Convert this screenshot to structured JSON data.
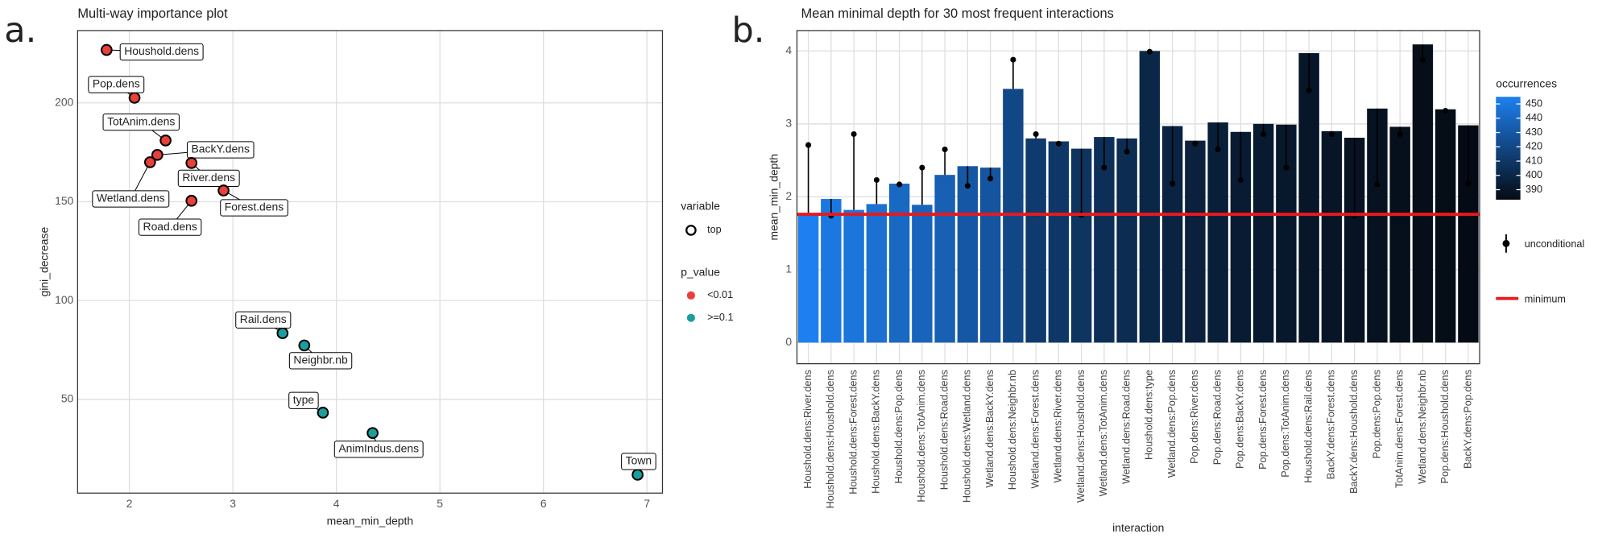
{
  "chart_data": [
    {
      "type": "scatter",
      "panel_label": "a.",
      "title": "Multi-way importance plot",
      "xlabel": "mean_min_depth",
      "ylabel": "gini_decrease",
      "labels": [
        "Houshold.dens",
        "Pop.dens",
        "TotAnim.dens",
        "BackY.dens",
        "Wetland.dens",
        "River.dens",
        "Forest.dens",
        "Road.dens",
        "Rail.dens",
        "Neighbr.nb",
        "type",
        "AnimIndus.dens",
        "Town"
      ],
      "x": [
        1.78,
        2.05,
        2.35,
        2.27,
        2.2,
        2.6,
        2.91,
        2.6,
        3.48,
        3.69,
        3.87,
        4.35,
        6.91
      ],
      "values": [
        226.8,
        202.6,
        181,
        173.7,
        170,
        169.6,
        155.7,
        150.5,
        83.5,
        77.3,
        43.3,
        33,
        11.9
      ],
      "p_value": [
        "<0.01",
        "<0.01",
        "<0.01",
        "<0.01",
        "<0.01",
        "<0.01",
        "<0.01",
        "<0.01",
        ">=0.1",
        ">=0.1",
        ">=0.1",
        ">=0.1",
        ">=0.1"
      ],
      "xlim": [
        1.5,
        7.15
      ],
      "ylim": [
        2.6,
        236.6
      ],
      "xticks": [
        2,
        3,
        4,
        5,
        6,
        7
      ],
      "yticks": [
        50,
        100,
        150,
        200
      ],
      "grid": true,
      "legend": {
        "variable_title": "variable",
        "variable_entry": "top",
        "p_value_title": "p_value",
        "p_value_levels": [
          {
            "name": "<0.01",
            "color": "#e8403a"
          },
          {
            "name": ">=0.1",
            "color": "#1b9e9e"
          }
        ]
      }
    },
    {
      "type": "bar",
      "panel_label": "b.",
      "title": "Mean minimal depth for 30 most frequent interactions",
      "xlabel": "interaction",
      "ylabel": "mean_min_depth",
      "categories": [
        "Houshold.dens:River.dens",
        "Houshold.dens:Houshold.dens",
        "Houshold.dens:Forest.dens",
        "Houshold.dens:BackY.dens",
        "Houshold.dens:Pop.dens",
        "Houshold.dens:TotAnim.dens",
        "Houshold.dens:Road.dens",
        "Houshold.dens:Wetland.dens",
        "Wetland.dens:BackY.dens",
        "Houshold.dens:Neighbr.nb",
        "Wetland.dens:Forest.dens",
        "Wetland.dens:River.dens",
        "Wetland.dens:Houshold.dens",
        "Wetland.dens:TotAnim.dens",
        "Wetland.dens:Road.dens",
        "Houshold.dens:type",
        "Wetland.dens:Pop.dens",
        "Pop.dens:River.dens",
        "Pop.dens:Road.dens",
        "Pop.dens:BackY.dens",
        "Pop.dens:Forest.dens",
        "Pop.dens:TotAnim.dens",
        "Houshold.dens:Rail.dens",
        "BackY.dens:Forest.dens",
        "BackY.dens:Houshold.dens",
        "Pop.dens:Pop.dens",
        "TotAnim.dens:Forest.dens",
        "Wetland.dens:Neighbr.nb",
        "Pop.dens:Houshold.dens",
        "BackY.dens:Pop.dens"
      ],
      "values": [
        1.77,
        1.97,
        1.82,
        1.9,
        2.18,
        1.89,
        2.3,
        2.42,
        2.4,
        3.48,
        2.8,
        2.76,
        2.66,
        2.82,
        2.8,
        4.0,
        2.97,
        2.77,
        3.02,
        2.89,
        3.0,
        2.99,
        3.97,
        2.9,
        2.81,
        3.21,
        2.96,
        4.09,
        3.2,
        2.98
      ],
      "unconditional": [
        2.71,
        1.74,
        2.86,
        2.23,
        2.17,
        2.4,
        2.65,
        2.15,
        2.25,
        3.88,
        2.86,
        2.73,
        1.75,
        2.4,
        2.62,
        3.99,
        2.18,
        2.73,
        2.65,
        2.23,
        2.86,
        2.4,
        3.46,
        2.86,
        1.74,
        2.17,
        2.86,
        3.88,
        3.18,
        2.18
      ],
      "occurrences": [
        455,
        450,
        448,
        445,
        440,
        438,
        435,
        430,
        428,
        420,
        412,
        410,
        408,
        405,
        403,
        400,
        398,
        396,
        395,
        393,
        392,
        391,
        390,
        389,
        388,
        387,
        386,
        385,
        384,
        383
      ],
      "minimum": 1.76,
      "minimum_color": "#e8191c",
      "ylim": [
        -0.29,
        4.28
      ],
      "yticks": [
        0,
        1,
        2,
        3,
        4
      ],
      "grid": true,
      "color_scale": {
        "title": "occurrences",
        "lim": [
          383,
          455
        ],
        "ticks": [
          390,
          400,
          410,
          420,
          430,
          440,
          450
        ],
        "low": "#050b14",
        "high": "#1e80f0"
      },
      "legend": {
        "unconditional": "unconditional",
        "minimum": "minimum"
      }
    }
  ]
}
